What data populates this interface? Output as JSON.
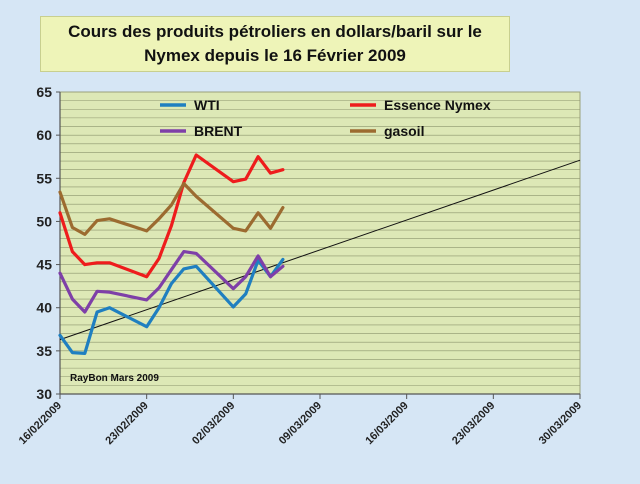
{
  "chart_data": {
    "type": "line",
    "title_line1": "Cours des produits pétroliers en dollars/baril sur le",
    "title_line2": "Nymex depuis le 16 Février 2009",
    "ylim": [
      30,
      65
    ],
    "y_ticks": [
      "30",
      "35",
      "40",
      "45",
      "50",
      "55",
      "60",
      "65"
    ],
    "x_ticks": [
      "16/02/2009",
      "23/02/2009",
      "02/03/2009",
      "09/03/2009",
      "16/03/2009",
      "23/03/2009",
      "30/03/2009"
    ],
    "grid": true,
    "legend_position": "top",
    "annotation": "RayBon Mars 2009",
    "x_days": [
      0,
      1,
      2,
      3,
      4,
      7,
      8,
      9,
      10,
      11,
      14,
      15,
      16,
      17,
      18
    ],
    "series": [
      {
        "name": "WTI",
        "color": "#1f7fc0",
        "values": [
          36.8,
          34.8,
          34.7,
          39.5,
          40.0,
          37.8,
          40.0,
          42.8,
          44.5,
          44.8,
          40.1,
          41.6,
          45.5,
          43.6,
          45.6
        ]
      },
      {
        "name": "Essence Nymex",
        "color": "#ee1c1c",
        "values": [
          51.0,
          46.5,
          45.0,
          45.2,
          45.2,
          43.6,
          45.7,
          49.5,
          54.5,
          57.7,
          54.6,
          54.9,
          57.5,
          55.6,
          56.0
        ]
      },
      {
        "name": "BRENT",
        "color": "#7e3fa8",
        "values": [
          44.0,
          41.0,
          39.5,
          41.9,
          41.8,
          40.9,
          42.3,
          44.4,
          46.5,
          46.3,
          42.2,
          43.6,
          46.0,
          43.6,
          44.8
        ]
      },
      {
        "name": "gasoil",
        "color": "#9c6b30",
        "values": [
          53.4,
          49.3,
          48.5,
          50.1,
          50.3,
          48.9,
          50.3,
          51.9,
          54.4,
          52.9,
          49.2,
          48.9,
          51.0,
          49.2,
          51.6
        ]
      }
    ],
    "trendline": {
      "color": "#111111",
      "x_days": [
        0,
        42
      ],
      "values": [
        36.3,
        57.1
      ]
    }
  }
}
